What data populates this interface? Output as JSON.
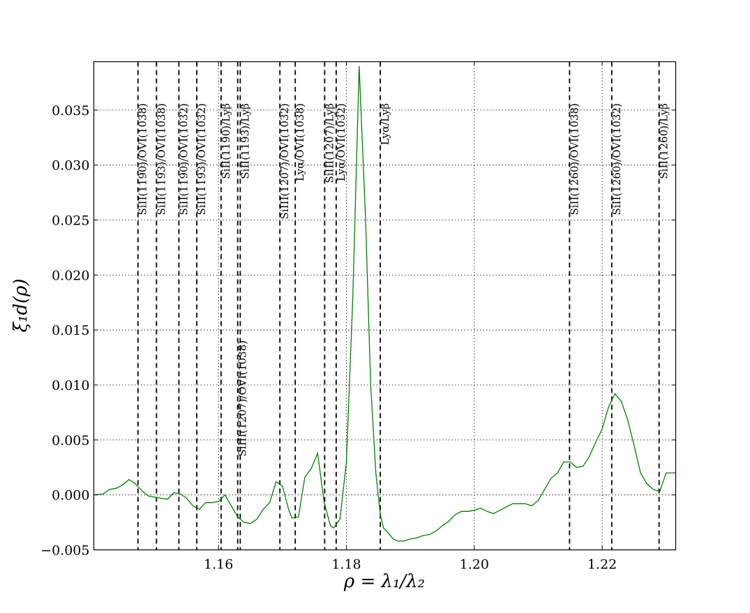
{
  "chart_data": {
    "type": "line",
    "title": "",
    "xlabel": "ρ = λ₁/λ₂",
    "ylabel": "ξ₁d(ρ)",
    "xlim": [
      1.1405,
      1.2315
    ],
    "ylim": [
      -0.005,
      0.0394
    ],
    "grid": true,
    "x_ticks": [
      1.16,
      1.18,
      1.2,
      1.22
    ],
    "x_tick_labels": [
      "1.16",
      "1.18",
      "1.20",
      "1.22"
    ],
    "y_ticks": [
      -0.005,
      0.0,
      0.005,
      0.01,
      0.015,
      0.02,
      0.025,
      0.03,
      0.035
    ],
    "y_tick_labels": [
      "−0.005",
      "0.000",
      "0.005",
      "0.010",
      "0.015",
      "0.020",
      "0.025",
      "0.030",
      "0.035"
    ],
    "series": [
      {
        "color": "#008000",
        "x": [
          1.1405,
          1.142,
          1.143,
          1.144,
          1.145,
          1.146,
          1.147,
          1.148,
          1.149,
          1.15,
          1.151,
          1.152,
          1.153,
          1.154,
          1.155,
          1.156,
          1.157,
          1.158,
          1.159,
          1.16,
          1.161,
          1.162,
          1.163,
          1.164,
          1.165,
          1.166,
          1.167,
          1.168,
          1.169,
          1.17,
          1.171,
          1.1715,
          1.1725,
          1.1735,
          1.1745,
          1.1755,
          1.1765,
          1.1775,
          1.178,
          1.179,
          1.18,
          1.181,
          1.182,
          1.183,
          1.1838,
          1.1846,
          1.1853,
          1.1858,
          1.1866,
          1.1873,
          1.188,
          1.189,
          1.19,
          1.191,
          1.192,
          1.193,
          1.194,
          1.195,
          1.196,
          1.197,
          1.198,
          1.199,
          1.2,
          1.201,
          1.202,
          1.203,
          1.204,
          1.205,
          1.206,
          1.207,
          1.208,
          1.209,
          1.21,
          1.211,
          1.212,
          1.213,
          1.214,
          1.215,
          1.216,
          1.217,
          1.218,
          1.219,
          1.22,
          1.221,
          1.222,
          1.223,
          1.224,
          1.225,
          1.226,
          1.227,
          1.228,
          1.229,
          1.23,
          1.231,
          1.2315
        ],
        "y": [
          0.0,
          0.0001,
          0.0005,
          0.0006,
          0.0009,
          0.0014,
          0.001,
          0.0004,
          -0.0001,
          -0.0002,
          -0.0003,
          -0.0004,
          0.0002,
          0.0001,
          -0.0003,
          -0.001,
          -0.0013,
          -0.0007,
          -0.0007,
          -0.0006,
          0.0,
          -0.001,
          -0.002,
          -0.0025,
          -0.0026,
          -0.0022,
          -0.0013,
          -0.0007,
          0.0012,
          0.0008,
          -0.0014,
          -0.0021,
          -0.002,
          0.0016,
          0.0024,
          0.0038,
          -0.0006,
          -0.0028,
          -0.003,
          -0.0022,
          0.003,
          0.018,
          0.039,
          0.025,
          0.01,
          0.002,
          -0.0018,
          -0.003,
          -0.0035,
          -0.004,
          -0.0042,
          -0.0042,
          -0.004,
          -0.0039,
          -0.0037,
          -0.0036,
          -0.0033,
          -0.0028,
          -0.0024,
          -0.0018,
          -0.0015,
          -0.0015,
          -0.0014,
          -0.0012,
          -0.0015,
          -0.0017,
          -0.0014,
          -0.0011,
          -0.0008,
          -0.0008,
          -0.0008,
          -0.001,
          -0.0005,
          0.0005,
          0.0015,
          0.002,
          0.003,
          0.003,
          0.0025,
          0.0026,
          0.0035,
          0.0048,
          0.006,
          0.008,
          0.0092,
          0.0085,
          0.0068,
          0.0045,
          0.002,
          0.001,
          0.0005,
          0.0003,
          0.002,
          0.002,
          0.002
        ]
      }
    ],
    "vlines": [
      {
        "x": 1.1474,
        "label": "SiII(1190)/OVI(1038)",
        "label_top": true
      },
      {
        "x": 1.1503,
        "label": "SiII(1193)/OVI(1038)",
        "label_top": true
      },
      {
        "x": 1.1538,
        "label": "SiII(1190)/OVI(1032)",
        "label_top": true
      },
      {
        "x": 1.1566,
        "label": "SiII(1193)/OVI(1032)",
        "label_top": true
      },
      {
        "x": 1.1604,
        "label": "SiII(1190)/Lyβ",
        "label_top": true
      },
      {
        "x": 1.163,
        "label": "SiIII(1207)/OVI(1038)",
        "label_top": false
      },
      {
        "x": 1.1634,
        "label": "SiII(1193)/Lyβ",
        "label_top": true
      },
      {
        "x": 1.1696,
        "label": "SiIII(1207)/OVI(1032)",
        "label_top": true
      },
      {
        "x": 1.172,
        "label": "Lyα/OVI(1038)",
        "label_top": true
      },
      {
        "x": 1.1766,
        "label": "SiIII(1207)/Lyβ",
        "label_top": true
      },
      {
        "x": 1.1784,
        "label": "Lyα/OVI(1032)",
        "label_top": true
      },
      {
        "x": 1.1853,
        "label": "Lyα/Lyβ",
        "label_top": true
      },
      {
        "x": 1.2149,
        "label": "SiII(1260)/OVI(1038)",
        "label_top": true
      },
      {
        "x": 1.2215,
        "label": "SiII(1260)/OVI(1032)",
        "label_top": true
      },
      {
        "x": 1.2289,
        "label": "SiII(1260)/Lyβ",
        "label_top": true
      }
    ]
  }
}
